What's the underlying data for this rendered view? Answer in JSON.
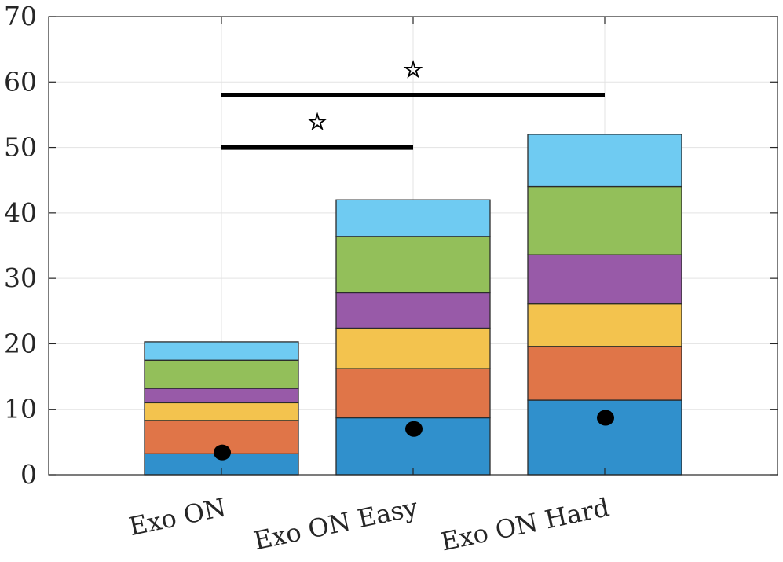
{
  "chart_data": {
    "type": "bar",
    "stacked": true,
    "categories": [
      "Exo ON",
      "Exo ON Easy",
      "Exo ON Hard"
    ],
    "series": [
      {
        "color": "#3090cc",
        "values": [
          3.2,
          8.7,
          11.4
        ]
      },
      {
        "color": "#e07548",
        "values": [
          5.1,
          7.5,
          8.2
        ]
      },
      {
        "color": "#f3c34e",
        "values": [
          2.7,
          6.2,
          6.5
        ]
      },
      {
        "color": "#985aa8",
        "values": [
          2.2,
          5.4,
          7.5
        ]
      },
      {
        "color": "#93bf5a",
        "values": [
          4.3,
          8.6,
          10.4
        ]
      },
      {
        "color": "#6fcbf2",
        "values": [
          2.8,
          5.6,
          8.0
        ]
      }
    ],
    "markers": {
      "type": "dot",
      "color": "#000000",
      "values": [
        3.4,
        7.0,
        8.7
      ]
    },
    "significance": [
      {
        "from": "Exo ON",
        "to": "Exo ON Easy",
        "y": 50,
        "symbol": "☆"
      },
      {
        "from": "Exo ON",
        "to": "Exo ON Hard",
        "y": 58,
        "symbol": "☆"
      }
    ],
    "ylim": [
      0,
      70
    ],
    "yticks": [
      "0",
      "10",
      "20",
      "30",
      "40",
      "50",
      "60",
      "70"
    ],
    "grid": true,
    "xlabel": "",
    "ylabel": "",
    "title": ""
  }
}
